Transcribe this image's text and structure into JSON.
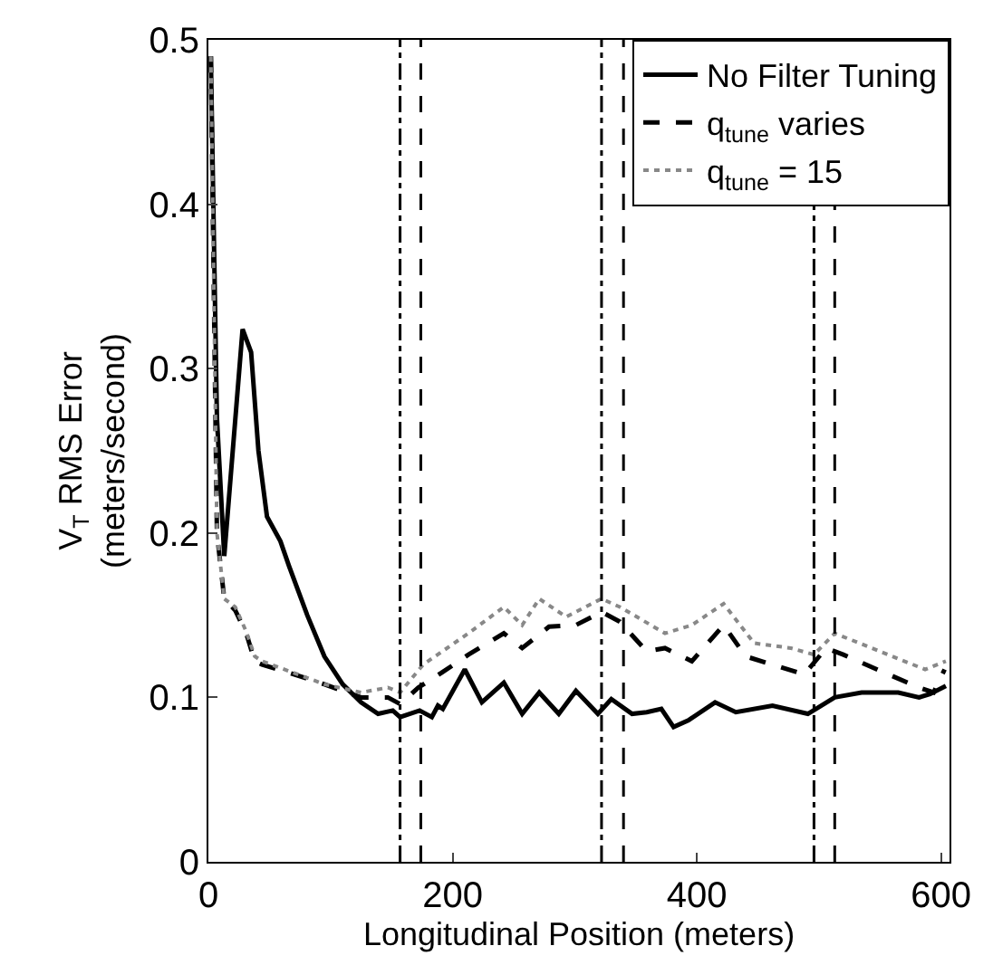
{
  "chart_data": {
    "type": "line",
    "xlabel": "Longitudinal Position (meters)",
    "ylabel": "V$_{T}$ RMS Error\n(meters/second)",
    "xlim": [
      0,
      607
    ],
    "ylim": [
      0,
      0.5
    ],
    "xticks": [
      0,
      200,
      400,
      600
    ],
    "yticks": [
      0,
      0.1,
      0.2,
      0.3,
      0.4,
      0.5
    ],
    "legend": "top right",
    "marker": "none",
    "series": [
      {
        "name": "No Filter Tuning",
        "color": "#000000",
        "line_style": "solid",
        "x": [
          2,
          7,
          13,
          28,
          35,
          41,
          48,
          59,
          66,
          81,
          95,
          110,
          125,
          139,
          151,
          157,
          173,
          183,
          188,
          192,
          210,
          224,
          242,
          257,
          271,
          287,
          301,
          319,
          330,
          347,
          359,
          371,
          381,
          393,
          415,
          432,
          462,
          491,
          513,
          535,
          565,
          582,
          591,
          604
        ],
        "values": [
          0.49,
          0.27,
          0.186,
          0.324,
          0.31,
          0.25,
          0.21,
          0.195,
          0.18,
          0.15,
          0.125,
          0.108,
          0.097,
          0.09,
          0.092,
          0.088,
          0.092,
          0.088,
          0.095,
          0.093,
          0.117,
          0.097,
          0.109,
          0.09,
          0.103,
          0.09,
          0.104,
          0.09,
          0.099,
          0.09,
          0.091,
          0.093,
          0.082,
          0.086,
          0.097,
          0.091,
          0.095,
          0.09,
          0.1,
          0.103,
          0.103,
          0.1,
          0.102,
          0.107
        ]
      },
      {
        "name": "q$_{tune}$ varies",
        "color": "#000000",
        "line_style": "dashed",
        "x": [
          2,
          7,
          13,
          22,
          31,
          38,
          44,
          66,
          95,
          125,
          147,
          157,
          172,
          191,
          213,
          242,
          257,
          279,
          301,
          322,
          337,
          359,
          374,
          396,
          422,
          440,
          466,
          488,
          506,
          520,
          557,
          582,
          594,
          603
        ],
        "values": [
          0.49,
          0.2,
          0.16,
          0.153,
          0.139,
          0.122,
          0.12,
          0.115,
          0.108,
          0.1,
          0.1,
          0.096,
          0.106,
          0.115,
          0.126,
          0.139,
          0.13,
          0.143,
          0.144,
          0.152,
          0.146,
          0.128,
          0.13,
          0.122,
          0.144,
          0.125,
          0.119,
          0.114,
          0.13,
          0.126,
          0.114,
          0.106,
          0.103,
          0.117
        ]
      },
      {
        "name": "q$_{tune}$ = 15",
        "color": "#888888",
        "line_style": "dotted",
        "x": [
          2,
          7,
          13,
          22,
          31,
          38,
          44,
          66,
          95,
          125,
          147,
          157,
          176,
          213,
          242,
          257,
          271,
          293,
          322,
          337,
          374,
          396,
          422,
          447,
          477,
          496,
          513,
          550,
          587,
          604
        ],
        "values": [
          0.49,
          0.2,
          0.16,
          0.155,
          0.14,
          0.125,
          0.122,
          0.116,
          0.108,
          0.103,
          0.106,
          0.103,
          0.12,
          0.139,
          0.155,
          0.144,
          0.16,
          0.149,
          0.16,
          0.155,
          0.139,
          0.144,
          0.157,
          0.133,
          0.13,
          0.126,
          0.139,
          0.128,
          0.117,
          0.122
        ]
      }
    ],
    "ref_lines": [
      {
        "axis": "x",
        "value": 157,
        "color": "#000000",
        "line_style": "dashdot"
      },
      {
        "axis": "x",
        "value": 174,
        "color": "#000000",
        "line_style": "dashed"
      },
      {
        "axis": "x",
        "value": 322,
        "color": "#000000",
        "line_style": "dashdot"
      },
      {
        "axis": "x",
        "value": 340,
        "color": "#000000",
        "line_style": "dashed"
      },
      {
        "axis": "x",
        "value": 496,
        "color": "#000000",
        "line_style": "dashdot"
      },
      {
        "axis": "x",
        "value": 513,
        "color": "#000000",
        "line_style": "dashed"
      }
    ]
  }
}
